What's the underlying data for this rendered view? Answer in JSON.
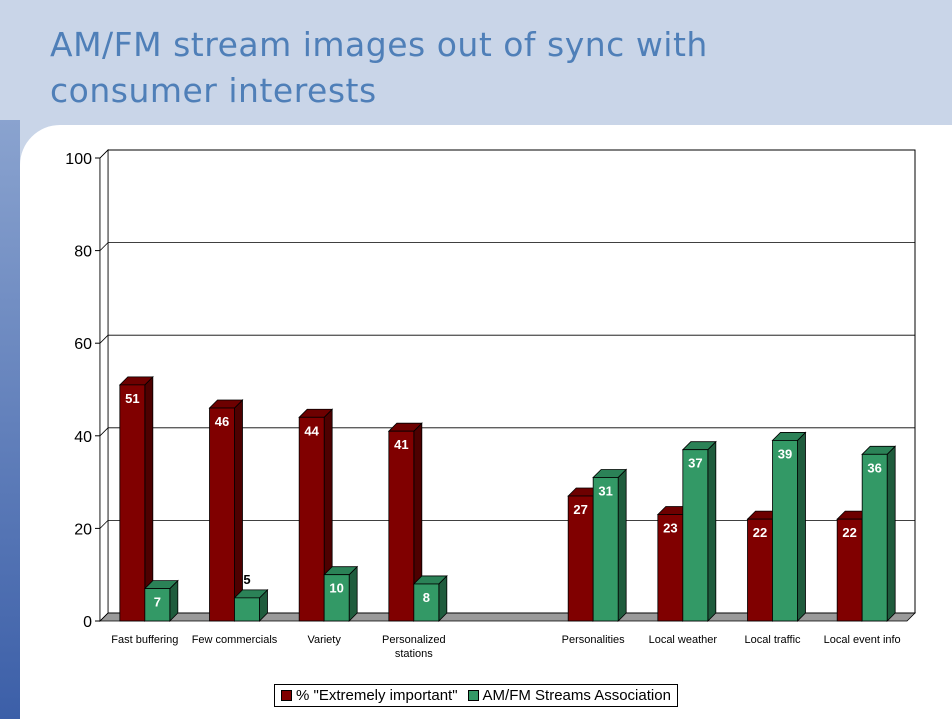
{
  "chart_data": {
    "type": "bar",
    "title": "AM/FM stream images out of sync with consumer interests",
    "categories": [
      "Fast buffering",
      "Few commercials",
      "Variety",
      "Personalized stations",
      null,
      "Personalities",
      "Local weather",
      "Local traffic",
      "Local event info"
    ],
    "series": [
      {
        "name": "% \"Extremely important\"",
        "color": "#800000",
        "values": [
          51,
          46,
          44,
          41,
          null,
          27,
          23,
          22,
          22
        ]
      },
      {
        "name": "AM/FM Streams Association",
        "color": "#339966",
        "values": [
          7,
          5,
          10,
          8,
          null,
          31,
          37,
          39,
          36
        ]
      }
    ],
    "ylim": [
      0,
      100
    ],
    "yticks": [
      0,
      20,
      40,
      60,
      80,
      100
    ],
    "grid": true,
    "legend": "bottom"
  }
}
